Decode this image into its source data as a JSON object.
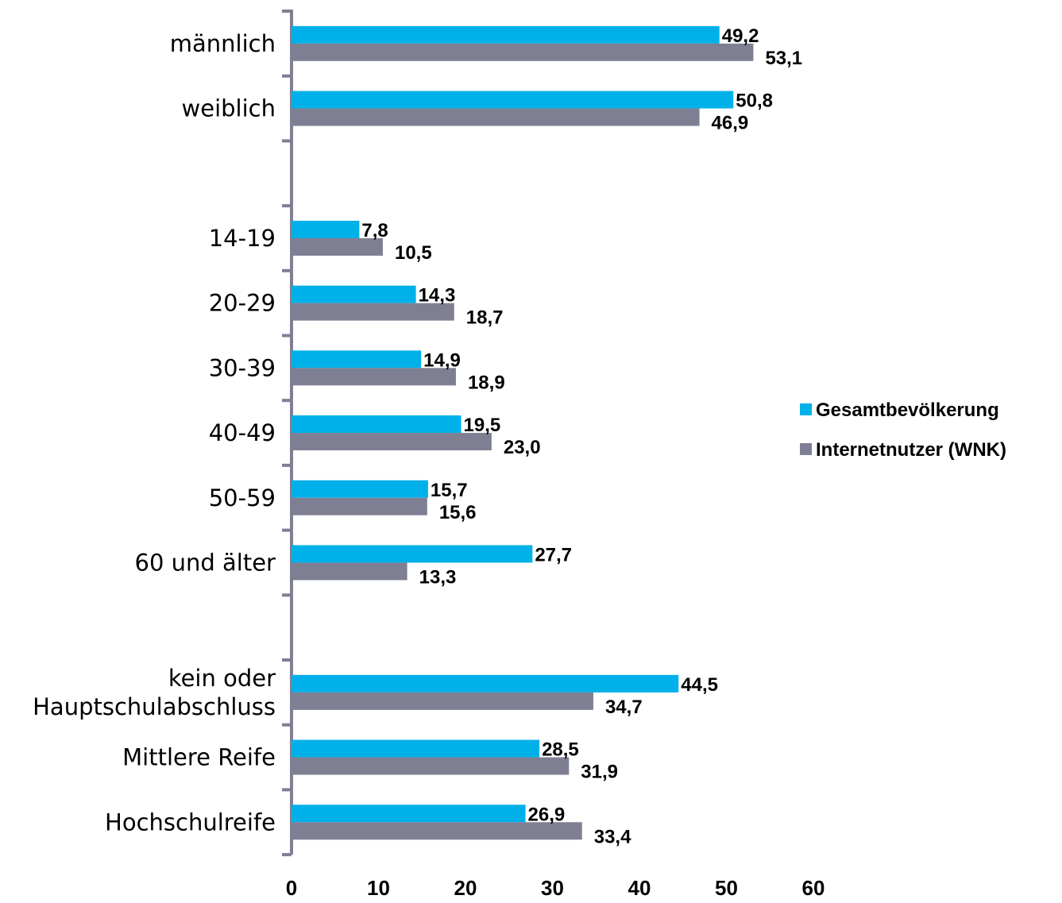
{
  "chart_data": {
    "type": "bar",
    "orientation": "horizontal",
    "categories": [
      "männlich",
      "weiblich",
      "",
      "14-19",
      "20-29",
      "30-39",
      "40-49",
      "50-59",
      "60 und älter",
      "",
      "kein oder\nHauptschulabschluss",
      "Mittlere Reife",
      "Hochschulreife"
    ],
    "series": [
      {
        "name": "Gesamtbevölkerung",
        "color": "#00B0E8",
        "values": [
          49.2,
          50.8,
          null,
          7.8,
          14.3,
          14.9,
          19.5,
          15.7,
          27.7,
          null,
          44.5,
          28.5,
          26.9
        ],
        "labels": [
          "49,2",
          "50,8",
          "",
          "7,8",
          "14,3",
          "14,9",
          "19,5",
          "15,7",
          "27,7",
          "",
          "44,5",
          "28,5",
          "26,9"
        ]
      },
      {
        "name": "Internetnutzer (WNK)",
        "color": "#7F7F94",
        "values": [
          53.1,
          46.9,
          null,
          10.5,
          18.7,
          18.9,
          23.0,
          15.6,
          13.3,
          null,
          34.7,
          31.9,
          33.4
        ],
        "labels": [
          "53,1",
          "46,9",
          "",
          "10,5",
          "18,7",
          "18,9",
          "23,0",
          "15,6",
          "13,3",
          "",
          "34,7",
          "31,9",
          "33,4"
        ]
      }
    ],
    "xlim": [
      0,
      60
    ],
    "xticks": [
      0,
      10,
      20,
      30,
      40,
      50,
      60
    ],
    "grid": false,
    "legend_position": "right"
  }
}
